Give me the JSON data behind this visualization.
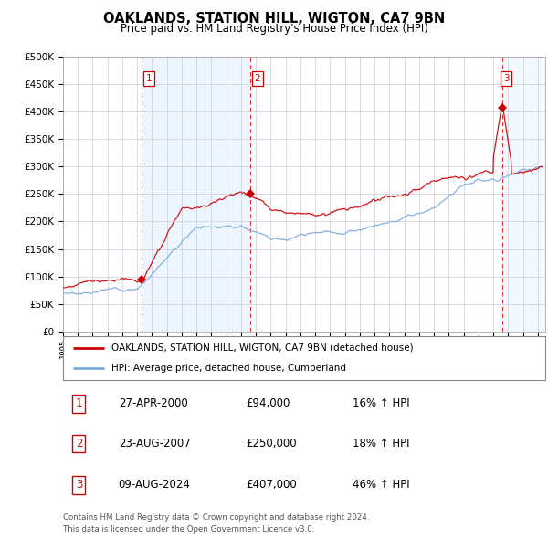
{
  "title": "OAKLANDS, STATION HILL, WIGTON, CA7 9BN",
  "subtitle": "Price paid vs. HM Land Registry's House Price Index (HPI)",
  "ylim": [
    0,
    500000
  ],
  "yticks": [
    0,
    50000,
    100000,
    150000,
    200000,
    250000,
    300000,
    350000,
    400000,
    450000,
    500000
  ],
  "ytick_labels": [
    "£0",
    "£50K",
    "£100K",
    "£150K",
    "£200K",
    "£250K",
    "£300K",
    "£350K",
    "£400K",
    "£450K",
    "£500K"
  ],
  "xlim_start": 1995.0,
  "xlim_end": 2027.5,
  "xtick_years": [
    1995,
    1996,
    1997,
    1998,
    1999,
    2000,
    2001,
    2002,
    2003,
    2004,
    2005,
    2006,
    2007,
    2008,
    2009,
    2010,
    2011,
    2012,
    2013,
    2014,
    2015,
    2016,
    2017,
    2018,
    2019,
    2020,
    2021,
    2022,
    2023,
    2024,
    2025,
    2026,
    2027
  ],
  "purchases": [
    {
      "label": "1",
      "date": 2000.32,
      "price": 94000,
      "pct": "16%",
      "date_str": "27-APR-2000",
      "price_str": "£94,000"
    },
    {
      "label": "2",
      "date": 2007.64,
      "price": 250000,
      "pct": "18%",
      "date_str": "23-AUG-2007",
      "price_str": "£250,000"
    },
    {
      "label": "3",
      "date": 2024.6,
      "price": 407000,
      "pct": "46%",
      "date_str": "09-AUG-2024",
      "price_str": "£407,000"
    }
  ],
  "hpi_line_color": "#7aaadd",
  "price_line_color": "#cc0000",
  "purchase_marker_color": "#cc0000",
  "shading_color": "#ddeeff",
  "grid_color": "#ccccdd",
  "background_color": "#ffffff",
  "legend_label_red": "OAKLANDS, STATION HILL, WIGTON, CA7 9BN (detached house)",
  "legend_label_blue": "HPI: Average price, detached house, Cumberland",
  "footer_line1": "Contains HM Land Registry data © Crown copyright and database right 2024.",
  "footer_line2": "This data is licensed under the Open Government Licence v3.0."
}
